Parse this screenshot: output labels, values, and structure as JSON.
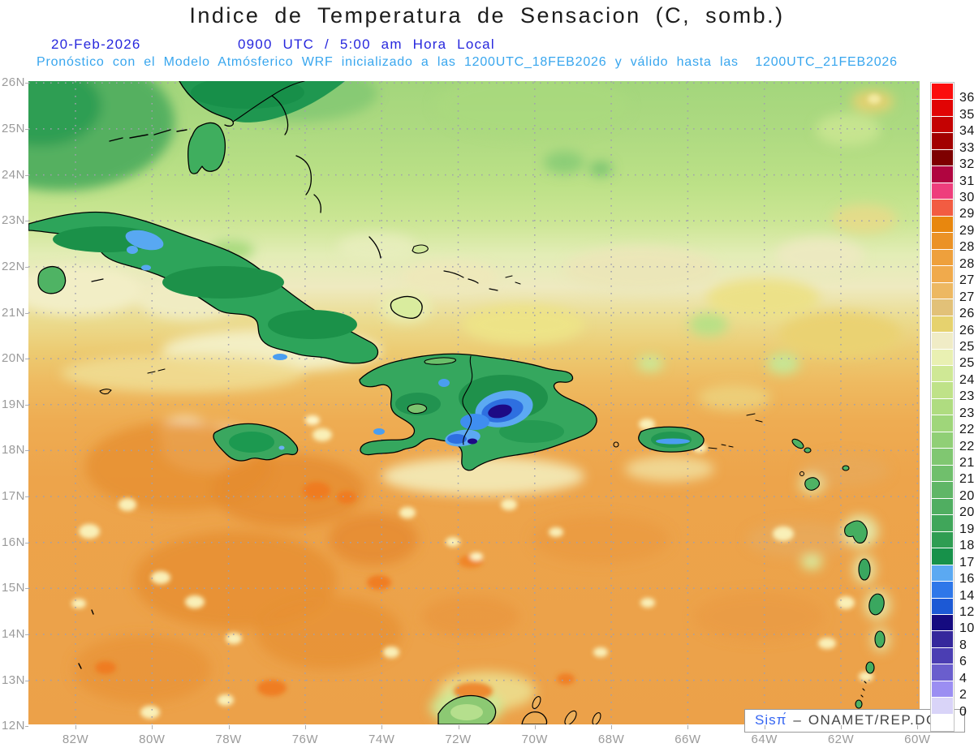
{
  "title": "Indice de Temperatura de Sensacion (C, somb.)",
  "header": {
    "date": "20-Feb-2026",
    "time": "0900 UTC / 5:00 am Hora Local",
    "model_info": "Pronóstico con el Modelo Atmósferico WRF inicializado a las 1200UTC_18FEB2026 y válido hasta las  1200UTC_21FEB2026"
  },
  "watermark": {
    "brand": "Sisπ́",
    "separator": "–",
    "org": "ONAMET/REP.DOM."
  },
  "axes": {
    "lat_labels": [
      "26N",
      "25N",
      "24N",
      "23N",
      "22N",
      "21N",
      "20N",
      "19N",
      "18N",
      "17N",
      "16N",
      "15N",
      "14N",
      "13N",
      "12N"
    ],
    "lon_labels": [
      "82W",
      "80W",
      "78W",
      "76W",
      "74W",
      "72W",
      "70W",
      "68W",
      "66W",
      "64W",
      "62W",
      "60W"
    ]
  },
  "colorbar": {
    "tick_labels": [
      "36",
      "35",
      "34",
      "33",
      "32",
      "31.5",
      "30.7",
      "29.7",
      "29",
      "28.5",
      "28",
      "27.5",
      "27",
      "26.5",
      "26",
      "25.5",
      "25",
      "24",
      "23.5",
      "23",
      "22.5",
      "22",
      "21.5",
      "21",
      "20.5",
      "20",
      "19",
      "18",
      "17",
      "16",
      "14",
      "12",
      "10",
      "8",
      "6",
      "4",
      "2",
      "0"
    ],
    "colors": [
      "#fb0e0e",
      "#e10404",
      "#c40202",
      "#a30000",
      "#7e0000",
      "#b00540",
      "#ee3e7c",
      "#f25c42",
      "#e8870e",
      "#eb9226",
      "#eea03c",
      "#f0aa4c",
      "#edb862",
      "#e2c178",
      "#e6d26e",
      "#f0ecc6",
      "#e9f0b2",
      "#cfe895",
      "#bfe288",
      "#afdc80",
      "#9fd67a",
      "#90cf76",
      "#80c771",
      "#70bf6c",
      "#60b667",
      "#50ae61",
      "#40a65a",
      "#2f9d52",
      "#17914a",
      "#5ba9f2",
      "#2e77e9",
      "#1c59d5",
      "#150b80",
      "#35289c",
      "#4b3eb3",
      "#6a5ecd",
      "#9b8ef2",
      "#d9d4f8",
      "#ffffff"
    ]
  },
  "chart_data": {
    "type": "heatmap",
    "title": "Indice de Temperatura de Sensacion (C, somb.)",
    "units": "°C",
    "lat_range": [
      "12N",
      "26N"
    ],
    "lon_range": [
      "83W",
      "60W"
    ],
    "scale_ticks": [
      36,
      35,
      34,
      33,
      32,
      31.5,
      30.7,
      29.7,
      29,
      28.5,
      28,
      27.5,
      27,
      26.5,
      26,
      25.5,
      25,
      24,
      23.5,
      23,
      22.5,
      22,
      21.5,
      21,
      20.5,
      20,
      19,
      18,
      17,
      16,
      14,
      12,
      10,
      8,
      6,
      4,
      2,
      0
    ],
    "grid": "dotted, 1° latitude × 2° longitude",
    "legend_position": "right",
    "regions": [
      {
        "area": "Atlantic north of 23N",
        "approx_value_C": "23-25"
      },
      {
        "area": "Transition band 21N-23N",
        "approx_value_C": "25.5-27"
      },
      {
        "area": "Caribbean Sea south of 20N",
        "approx_value_C": "28-29.5"
      },
      {
        "area": "Cuba / Jamaica / Puerto Rico interiors",
        "approx_value_C": "17-22"
      },
      {
        "area": "Hispaniola Cordillera Central core",
        "approx_value_C": "8-14"
      },
      {
        "area": "Florida / Bahamas land",
        "approx_value_C": "18-22"
      }
    ]
  },
  "palette": {
    "grid": "#a0a0ae",
    "axis_text": "#9b9b9b",
    "header_blue": "#2727dd",
    "header_cyan": "#38a6ee"
  }
}
